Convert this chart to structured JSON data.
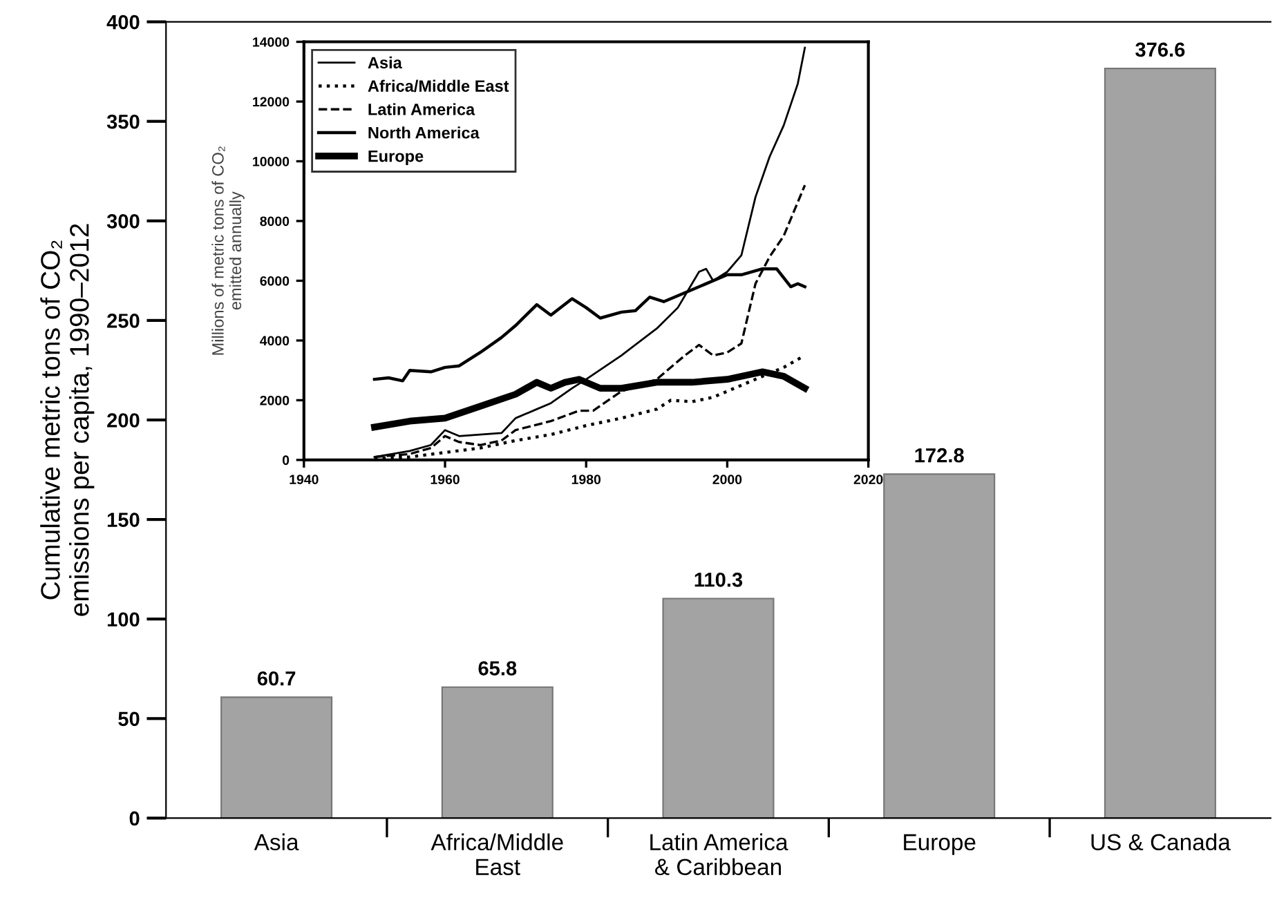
{
  "chart_data": [
    {
      "type": "bar",
      "ylabel": "Cumulative metric tons of CO₂\nemissions per capita, 1990–2012",
      "categories": [
        "Asia",
        "Africa/Middle\nEast",
        "Latin America\n& Caribbean",
        "Europe",
        "US & Canada"
      ],
      "values": [
        60.7,
        65.8,
        110.3,
        172.8,
        376.6
      ],
      "color": "#a3a3a3",
      "ylim": [
        0,
        400
      ],
      "yticks": [
        0,
        50,
        100,
        150,
        200,
        250,
        300,
        350,
        400
      ],
      "data_labels": true
    },
    {
      "type": "line",
      "ylabel": "Millions of metric tons of CO₂\nemitted annually",
      "xlim": [
        1940,
        2020
      ],
      "xticks": [
        1940,
        1960,
        1980,
        2000,
        2020
      ],
      "ylim": [
        0,
        14000
      ],
      "yticks": [
        0,
        2000,
        4000,
        6000,
        8000,
        10000,
        12000,
        14000
      ],
      "grid": false,
      "legend": "top left",
      "marker": "none",
      "series": [
        {
          "name": "Asia",
          "color": "#000000",
          "line_style": "solid",
          "x": [
            1950,
            1955,
            1958,
            1960,
            1962,
            1965,
            1968,
            1970,
            1973,
            1975,
            1978,
            1980,
            1985,
            1990,
            1993,
            1995,
            1996,
            1997,
            1998,
            2000,
            2002,
            2004,
            2006,
            2008,
            2010,
            2011
          ],
          "values": [
            100,
            300,
            500,
            1000,
            800,
            850,
            900,
            1400,
            1700,
            1900,
            2400,
            2700,
            3500,
            4400,
            5100,
            5900,
            6300,
            6400,
            6000,
            6300,
            6850,
            8800,
            10150,
            11200,
            12600,
            13800
          ]
        },
        {
          "name": "Africa/Middle East",
          "color": "#000000",
          "line_style": "dotted",
          "x": [
            1950,
            1955,
            1960,
            1965,
            1970,
            1975,
            1980,
            1985,
            1990,
            1992,
            1995,
            1998,
            2000,
            2005,
            2008,
            2011
          ],
          "values": [
            50,
            100,
            250,
            400,
            650,
            850,
            1150,
            1400,
            1700,
            2000,
            1950,
            2100,
            2300,
            2800,
            3100,
            3500
          ]
        },
        {
          "name": "Latin America",
          "color": "#000000",
          "line_style": "dashed",
          "x": [
            1950,
            1955,
            1958,
            1960,
            1962,
            1965,
            1968,
            1970,
            1975,
            1979,
            1981,
            1985,
            1990,
            1994,
            1996,
            1998,
            2000,
            2002,
            2004,
            2006,
            2008,
            2011
          ],
          "values": [
            100,
            200,
            400,
            800,
            600,
            500,
            650,
            1000,
            1300,
            1650,
            1650,
            2300,
            2700,
            3500,
            3850,
            3500,
            3600,
            3900,
            5900,
            6800,
            7500,
            9200
          ]
        },
        {
          "name": "North America",
          "color": "#000000",
          "line_style": "solid",
          "x": [
            1950,
            1952,
            1954,
            1955,
            1958,
            1960,
            1962,
            1965,
            1968,
            1970,
            1973,
            1975,
            1978,
            1980,
            1982,
            1985,
            1987,
            1989,
            1991,
            1995,
            2000,
            2002,
            2005,
            2007,
            2009,
            2010,
            2011
          ],
          "values": [
            2700,
            2750,
            2650,
            3000,
            2950,
            3100,
            3150,
            3600,
            4100,
            4500,
            5200,
            4850,
            5400,
            5100,
            4750,
            4950,
            5000,
            5450,
            5300,
            5700,
            6200,
            6200,
            6400,
            6400,
            5800,
            5900,
            5800
          ]
        },
        {
          "name": "Europe",
          "color": "#000000",
          "line_style": "solid",
          "x": [
            1950,
            1955,
            1960,
            1965,
            1970,
            1973,
            1975,
            1977,
            1979,
            1982,
            1985,
            1990,
            1995,
            2000,
            2005,
            2008,
            2011
          ],
          "values": [
            1100,
            1300,
            1400,
            1800,
            2200,
            2600,
            2400,
            2600,
            2700,
            2400,
            2400,
            2600,
            2600,
            2700,
            2950,
            2800,
            2400
          ]
        }
      ]
    }
  ]
}
